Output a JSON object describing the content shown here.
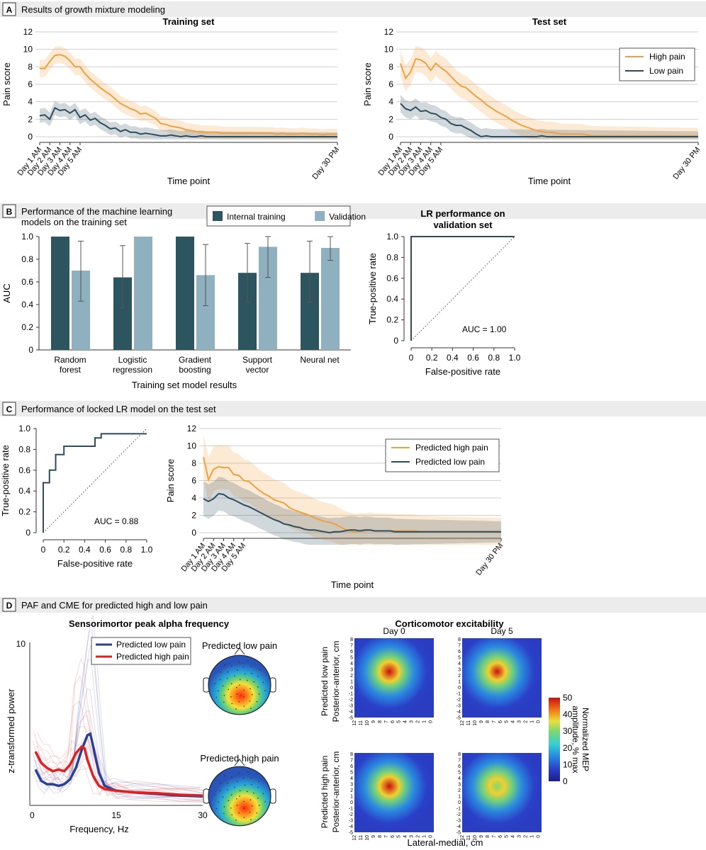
{
  "panels": {
    "A": {
      "letter": "A",
      "title": "Results of growth mixture modeling"
    },
    "B": {
      "letter": "B",
      "title_line1": "Performance of the machine learning",
      "title_line2": "models on the training set"
    },
    "C": {
      "letter": "C",
      "title": "Performance of locked LR model on the test set"
    },
    "D": {
      "letter": "D",
      "title": "PAF and CME for predicted high and low pain"
    }
  },
  "colors": {
    "high": "#f0a040",
    "low": "#2e4d5c",
    "internal": "#2d5560",
    "validation": "#8eb0bf",
    "red": "#e02020",
    "blue": "#2b3f99",
    "panel_bar": "#e6e6e6"
  },
  "chart_data": [
    {
      "id": "training_set",
      "type": "line",
      "title": "Training set",
      "xlabel": "Time point",
      "ylabel": "Pain score",
      "ylim": [
        0,
        12
      ],
      "yticks": [
        0,
        2,
        4,
        6,
        8,
        10,
        12
      ],
      "x_labels": [
        "Day 1 AM",
        "Day 2 AM",
        "Day 3 AM",
        "Day 4 AM",
        "Day 5 AM",
        "Day 30 PM"
      ],
      "x_label_index": [
        1,
        3,
        5,
        7,
        9,
        60
      ],
      "x_count": 60,
      "grid": true,
      "series": [
        {
          "name": "High pain",
          "color": "#f0a040",
          "values": [
            7.8,
            7.8,
            8.6,
            9.3,
            9.4,
            9.2,
            8.7,
            8.0,
            8.0,
            7.2,
            6.6,
            6.1,
            5.6,
            5.2,
            4.8,
            4.3,
            3.8,
            3.5,
            3.2,
            3.0,
            2.6,
            2.7,
            2.4,
            2.1,
            1.5,
            1.4,
            1.2,
            1.1,
            1.0,
            0.8,
            0.7,
            0.6,
            0.5,
            0.5,
            0.5,
            0.5,
            0.4,
            0.4,
            0.4,
            0.4,
            0.4,
            0.4,
            0.4,
            0.4,
            0.4,
            0.4,
            0.4,
            0.3,
            0.4,
            0.3,
            0.3,
            0.3,
            0.4,
            0.3,
            0.3,
            0.3,
            0.2,
            0.3,
            0.3,
            0.3
          ],
          "band": 1.0
        },
        {
          "name": "Low pain",
          "color": "#2e4d5c",
          "values": [
            2.4,
            2.5,
            2.0,
            3.3,
            3.0,
            3.1,
            2.7,
            3.1,
            2.2,
            2.5,
            1.9,
            2.1,
            1.6,
            1.3,
            0.9,
            1.0,
            0.6,
            0.8,
            0.5,
            0.5,
            0.3,
            0.4,
            0.3,
            0.2,
            0.1,
            0.1,
            0.2,
            0.1,
            0.0,
            0.1,
            0.0,
            0.0,
            0.1,
            0.0,
            0.0,
            0.0,
            0.0,
            0.0,
            0.0,
            0.0,
            0.0,
            0.0,
            0.0,
            0.0,
            0.0,
            0.0,
            0.0,
            0.0,
            0.0,
            0.0,
            0.0,
            0.0,
            0.0,
            0.0,
            0.0,
            0.0,
            0.0,
            0.0,
            0.0,
            0.0
          ],
          "band": 0.8
        }
      ]
    },
    {
      "id": "test_set",
      "type": "line",
      "title": "Test set",
      "xlabel": "Time point",
      "ylabel": "Pain score",
      "ylim": [
        0,
        12
      ],
      "yticks": [
        0,
        2,
        4,
        6,
        8,
        10,
        12
      ],
      "x_labels": [
        "Day 1 AM",
        "Day 2 AM",
        "Day 3 AM",
        "Day 4 AM",
        "Day 5 AM",
        "Day 30 PM"
      ],
      "x_label_index": [
        1,
        3,
        5,
        7,
        9,
        60
      ],
      "x_count": 60,
      "grid": true,
      "legend": "top-right",
      "series": [
        {
          "name": "High pain",
          "color": "#f0a040",
          "values": [
            8.4,
            6.7,
            7.4,
            8.9,
            8.8,
            8.4,
            7.6,
            8.4,
            7.9,
            7.5,
            6.9,
            6.3,
            5.8,
            5.6,
            5.1,
            4.6,
            4.2,
            3.7,
            3.3,
            2.9,
            2.6,
            2.3,
            1.9,
            1.6,
            1.3,
            1.1,
            0.9,
            0.7,
            0.6,
            0.5,
            0.5,
            0.4,
            0.3,
            0.3,
            0.3,
            0.3,
            0.3,
            0.2,
            0.1,
            0.1,
            0.1,
            0.1,
            0.1,
            0.1,
            0.1,
            0.1,
            0.1,
            0.1,
            0.1,
            0.1,
            0.1,
            0.1,
            0.1,
            0.1,
            0.1,
            0.1,
            0.1,
            0.1,
            0.1,
            0.1
          ],
          "band": 1.5
        },
        {
          "name": "Low pain",
          "color": "#2e4d5c",
          "values": [
            3.8,
            3.2,
            3.0,
            3.4,
            2.9,
            3.0,
            2.7,
            2.6,
            2.2,
            2.0,
            1.5,
            1.3,
            1.3,
            1.0,
            0.7,
            0.3,
            0.0,
            0.1,
            0.0,
            0.0,
            0.0,
            0.0,
            0.0,
            0.0,
            0.0,
            0.0,
            0.0,
            0.0,
            0.1,
            0.0,
            0.0,
            0.0,
            0.0,
            0.0,
            0.0,
            0.0,
            0.0,
            0.0,
            0.0,
            0.0,
            0.0,
            0.0,
            0.0,
            0.0,
            0.0,
            0.0,
            0.0,
            0.0,
            0.0,
            0.0,
            0.0,
            0.0,
            0.0,
            0.0,
            0.0,
            0.0,
            0.0,
            0.0,
            0.0,
            0.0
          ],
          "band": 1.0
        }
      ]
    },
    {
      "id": "ml_models",
      "type": "bar",
      "xlabel": "Training set model results",
      "ylabel": "AUC",
      "ylim": [
        0,
        1
      ],
      "yticks": [
        0,
        0.2,
        0.4,
        0.6,
        0.8,
        1.0
      ],
      "categories": [
        [
          "Random",
          "forest"
        ],
        [
          "Logistic",
          "regression"
        ],
        [
          "Gradient",
          "boosting"
        ],
        [
          "Support",
          "vector"
        ],
        [
          "Neural net",
          ""
        ]
      ],
      "legend": "top",
      "series": [
        {
          "name": "Internal training",
          "color": "#2d5560",
          "values": [
            1.0,
            0.64,
            1.0,
            0.68,
            0.68
          ],
          "err_low": [
            null,
            0.37,
            null,
            0.42,
            0.42
          ],
          "err_high": [
            null,
            0.92,
            null,
            0.94,
            0.96
          ]
        },
        {
          "name": "Validation",
          "color": "#8eb0bf",
          "values": [
            0.7,
            1.0,
            0.66,
            0.91,
            0.9
          ],
          "err_low": [
            0.43,
            null,
            0.39,
            0.64,
            0.79
          ],
          "err_high": [
            0.96,
            null,
            0.93,
            1.0,
            1.0
          ]
        }
      ]
    },
    {
      "id": "lr_validation",
      "type": "line",
      "title_line1": "LR performance on",
      "title_line2": "validation set",
      "xlabel": "False-positive rate",
      "ylabel": "True-positive rate",
      "xlim": [
        0,
        1
      ],
      "ylim": [
        0,
        1
      ],
      "xticks": [
        0,
        0.2,
        0.4,
        0.6,
        0.8,
        1.0
      ],
      "yticks": [
        0,
        0.2,
        0.4,
        0.6,
        0.8,
        1.0
      ],
      "roc": [
        [
          0,
          0
        ],
        [
          0,
          1
        ],
        [
          1,
          1
        ]
      ],
      "annotation": "AUC = 1.00"
    },
    {
      "id": "lr_test_roc",
      "type": "line",
      "xlabel": "False-positive rate",
      "ylabel": "True-positive rate",
      "xlim": [
        0,
        1
      ],
      "ylim": [
        0,
        1
      ],
      "xticks": [
        0,
        0.2,
        0.4,
        0.6,
        0.8,
        1.0
      ],
      "yticks": [
        0,
        0.2,
        0.4,
        0.6,
        0.8,
        1.0
      ],
      "roc": [
        [
          0,
          0
        ],
        [
          0,
          0.48
        ],
        [
          0.06,
          0.48
        ],
        [
          0.06,
          0.6
        ],
        [
          0.12,
          0.6
        ],
        [
          0.12,
          0.75
        ],
        [
          0.2,
          0.75
        ],
        [
          0.2,
          0.83
        ],
        [
          0.5,
          0.83
        ],
        [
          0.5,
          0.91
        ],
        [
          0.56,
          0.91
        ],
        [
          0.56,
          0.95
        ],
        [
          1,
          0.95
        ]
      ],
      "annotation": "AUC = 0.88"
    },
    {
      "id": "predicted_pain",
      "type": "line",
      "xlabel": "Time point",
      "ylabel": "Pain score",
      "ylim": [
        0,
        12
      ],
      "yticks": [
        0,
        2,
        4,
        6,
        8,
        10,
        12
      ],
      "x_labels": [
        "Day 1 AM",
        "Day 2 AM",
        "Day 3 AM",
        "Day 4 AM",
        "Day 5 AM",
        "Day 30 PM"
      ],
      "x_label_index": [
        1,
        3,
        5,
        7,
        9,
        60
      ],
      "x_count": 60,
      "grid": true,
      "legend": "top-right",
      "series": [
        {
          "name": "Predicted high pain",
          "color": "#f0a040",
          "values": [
            8.7,
            6.1,
            7.3,
            7.6,
            7.5,
            7.5,
            6.7,
            6.6,
            6.0,
            5.9,
            5.4,
            4.9,
            4.5,
            4.2,
            3.8,
            3.6,
            3.4,
            2.9,
            2.6,
            2.4,
            2.2,
            2.0,
            1.7,
            1.5,
            1.3,
            1.2,
            1.0,
            0.7,
            0.4,
            0.2,
            0.1,
            0.2,
            0.2,
            0.3,
            0.2,
            0.2,
            0.2,
            0.2,
            0.2,
            0.2,
            0.2,
            0.2,
            0.2,
            0.1,
            0.1,
            0.1,
            0.1,
            0.1,
            0.1,
            0.1,
            0.1,
            0.1,
            0.1,
            0.1,
            0.1,
            0.1,
            0.1,
            0.1,
            0.1,
            0.1
          ],
          "band": 2.6
        },
        {
          "name": "Predicted low pain",
          "color": "#2e4d5c",
          "values": [
            3.9,
            3.6,
            3.9,
            4.5,
            4.4,
            4.0,
            3.8,
            3.5,
            3.2,
            3.0,
            2.7,
            2.4,
            2.1,
            1.8,
            1.5,
            1.3,
            1.0,
            0.9,
            0.7,
            0.6,
            0.4,
            0.3,
            0.3,
            0.2,
            0.1,
            0.0,
            0.1,
            0.1,
            0.2,
            0.3,
            0.3,
            0.2,
            0.3,
            0.3,
            0.2,
            0.2,
            0.2,
            0.2,
            0.1,
            0.1,
            0.1,
            0.1,
            0.1,
            0.1,
            0.1,
            0.1,
            0.1,
            0.1,
            0.1,
            0.1,
            0.1,
            0.1,
            0.1,
            0.1,
            0.1,
            0.1,
            0.1,
            0.1,
            0.1,
            0.1
          ],
          "band": 2.0
        }
      ]
    },
    {
      "id": "paf",
      "type": "line",
      "title": "Sensorimortor peak alpha frequency",
      "xlabel": "Frequency, Hz",
      "ylabel": "z-transformed power",
      "xlim": [
        0,
        30
      ],
      "xticks": [
        0,
        15,
        30
      ],
      "yticks": [
        10
      ],
      "legend": "top-right",
      "series": [
        {
          "name": "Predicted low pain",
          "color": "#2b3f99",
          "points": [
            [
              1,
              2.2
            ],
            [
              2,
              1.5
            ],
            [
              3,
              1.3
            ],
            [
              4,
              1.3
            ],
            [
              5,
              1.2
            ],
            [
              6,
              1.3
            ],
            [
              7,
              1.6
            ],
            [
              8,
              2.3
            ],
            [
              9,
              3.4
            ],
            [
              10,
              4.3
            ],
            [
              10.5,
              4.4
            ],
            [
              11,
              3.6
            ],
            [
              12,
              2.0
            ],
            [
              13,
              1.2
            ],
            [
              15,
              0.9
            ],
            [
              18,
              0.8
            ],
            [
              22,
              0.7
            ],
            [
              26,
              0.6
            ],
            [
              30,
              0.55
            ]
          ]
        },
        {
          "name": "Predicted high pain",
          "color": "#e02020",
          "points": [
            [
              1,
              3.3
            ],
            [
              2,
              2.6
            ],
            [
              3,
              2.3
            ],
            [
              4,
              2.1
            ],
            [
              5,
              2.2
            ],
            [
              6,
              2.1
            ],
            [
              7,
              2.5
            ],
            [
              8,
              3.2
            ],
            [
              9,
              3.6
            ],
            [
              9.5,
              3.5
            ],
            [
              10,
              2.8
            ],
            [
              11,
              1.8
            ],
            [
              12,
              1.2
            ],
            [
              13,
              1.0
            ],
            [
              15,
              0.9
            ],
            [
              18,
              0.8
            ],
            [
              22,
              0.75
            ],
            [
              26,
              0.65
            ],
            [
              30,
              0.6
            ]
          ]
        }
      ],
      "topo_titles": [
        "Predicted low pain",
        "Predicted high pain"
      ]
    },
    {
      "id": "cme",
      "type": "heatmap",
      "title": "Corticomotor excitability",
      "columns": [
        "Day 0",
        "Day 5"
      ],
      "rows": [
        "Predicted low pain",
        "Predicted high pain"
      ],
      "ylabel": "Posterior-anterior, cm",
      "xlabel": "Lateral-medial, cm",
      "y_ticks": [
        "8",
        "7",
        "6",
        "5",
        "4",
        "3",
        "2",
        "1",
        "0",
        "-1",
        "-2",
        "-3",
        "-4",
        "-5"
      ],
      "x_ticks": [
        "12",
        "11",
        "10",
        "9",
        "8",
        "7",
        "6",
        "5",
        "4",
        "3",
        "2",
        "1",
        "0"
      ],
      "colorbar_ticks": [
        "50",
        "40",
        "30",
        "20",
        "10",
        "0"
      ],
      "colorbar_label_line1": "Normalized MEP",
      "colorbar_label_line2": "amplitude, % max",
      "peaks": [
        [
          0.95,
          0.8
        ],
        [
          1.0,
          0.7
        ],
        [
          0.95,
          0.8
        ],
        [
          0.55,
          0.6
        ]
      ]
    }
  ]
}
